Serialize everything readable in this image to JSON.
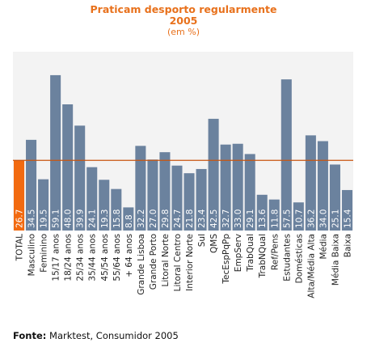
{
  "chart_data": {
    "type": "bar",
    "title": "Praticam desporto regularmente",
    "title_year": "2005",
    "subtitle": "(em %)",
    "categories": [
      "TOTAL",
      "Masculino",
      "Feminino",
      "15/17 anos",
      "18/24 anos",
      "25/34 anos",
      "35/44 anos",
      "45/54 anos",
      "55/64 anos",
      "+ 64 anos",
      "Grande Lisboa",
      "Grande Porto",
      "Litoral Norte",
      "Litoral Centro",
      "Interior Norte",
      "Sul",
      "QMS",
      "TecEspPqPp",
      "EmpServ",
      "TrabQual",
      "TrabNQual",
      "Ref/Pens",
      "Estudantes",
      "Domésticas",
      "Alta/Média Alta",
      "Média",
      "Média Baixa",
      "Baixa"
    ],
    "values": [
      26.7,
      34.5,
      19.5,
      59.1,
      48.0,
      39.9,
      24.1,
      19.3,
      15.8,
      8.8,
      32.2,
      27.0,
      29.8,
      24.7,
      21.8,
      23.4,
      42.5,
      32.7,
      33.0,
      29.1,
      13.6,
      11.8,
      57.5,
      10.7,
      36.2,
      34.0,
      25.1,
      15.4
    ],
    "value_labels": [
      "26.7",
      "34.5",
      "19.5",
      "59.1",
      "48.0",
      "39.9",
      "24.1",
      "19.3",
      "15.8",
      "8.8",
      "32.2",
      "27.0",
      "29.8",
      "24.7",
      "21.8",
      "23.4",
      "42.5",
      "32.7",
      "33.0",
      "29.1",
      "13.6",
      "11.8",
      "57.5",
      "10.7",
      "36.2",
      "34.0",
      "25.1",
      "15.4"
    ],
    "ylim": [
      0,
      68
    ],
    "reference_line": {
      "value": 26.7
    },
    "highlight_category": "TOTAL",
    "grid": false,
    "xlabel": "",
    "ylabel": "",
    "colors": {
      "bar": "#6b829e",
      "highlight": "#f26a10",
      "reference_line": "#c8550f",
      "plot_background": "#f3f3f3",
      "title": "#e8711c",
      "bar_label": "#ffffff"
    }
  },
  "footer": {
    "source_label": "Fonte:",
    "source_text": " Marktest, Consumidor 2005"
  }
}
